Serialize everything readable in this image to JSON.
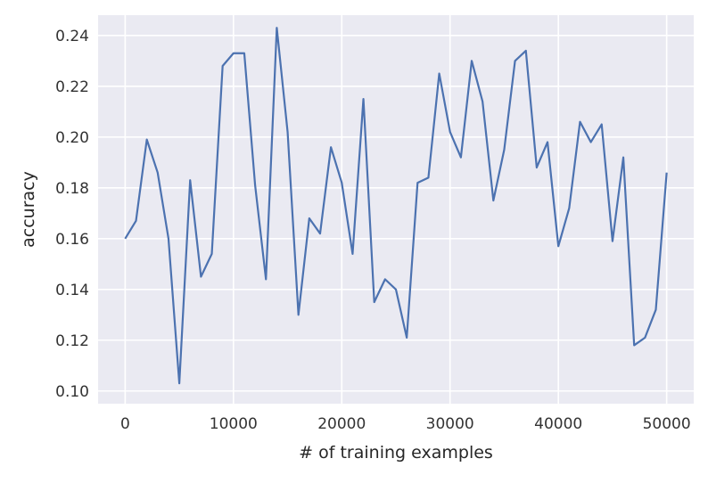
{
  "chart_data": {
    "type": "line",
    "title": "",
    "xlabel": "# of training examples",
    "ylabel": "accuracy",
    "xlim": [
      -2500,
      52500
    ],
    "ylim": [
      0.095,
      0.248
    ],
    "xticks": [
      0,
      10000,
      20000,
      30000,
      40000,
      50000
    ],
    "yticks": [
      0.1,
      0.12,
      0.14,
      0.16,
      0.18,
      0.2,
      0.22,
      0.24
    ],
    "grid": true,
    "legend": "none",
    "colors": {
      "line": "#4c72b0",
      "background": "#eaeaf2",
      "grid": "#ffffff"
    },
    "series": [
      {
        "x": [
          0,
          1000,
          2000,
          3000,
          4000,
          5000,
          6000,
          7000,
          8000,
          9000,
          10000,
          11000,
          12000,
          13000,
          14000,
          15000,
          16000,
          17000,
          18000,
          19000,
          20000,
          21000,
          22000,
          23000,
          24000,
          25000,
          26000,
          27000,
          28000,
          29000,
          30000,
          31000,
          32000,
          33000,
          34000,
          35000,
          36000,
          37000,
          38000,
          39000,
          40000,
          41000,
          42000,
          43000,
          44000,
          45000,
          46000,
          47000,
          48000,
          49000,
          50000
        ],
        "values": [
          0.16,
          0.167,
          0.199,
          0.186,
          0.16,
          0.103,
          0.183,
          0.145,
          0.154,
          0.228,
          0.233,
          0.233,
          0.181,
          0.144,
          0.243,
          0.202,
          0.13,
          0.168,
          0.162,
          0.196,
          0.182,
          0.154,
          0.215,
          0.135,
          0.144,
          0.14,
          0.121,
          0.182,
          0.184,
          0.225,
          0.202,
          0.192,
          0.23,
          0.214,
          0.175,
          0.195,
          0.23,
          0.234,
          0.188,
          0.198,
          0.157,
          0.172,
          0.206,
          0.198,
          0.205,
          0.159,
          0.192,
          0.118,
          0.121,
          0.132,
          0.186
        ]
      }
    ]
  }
}
